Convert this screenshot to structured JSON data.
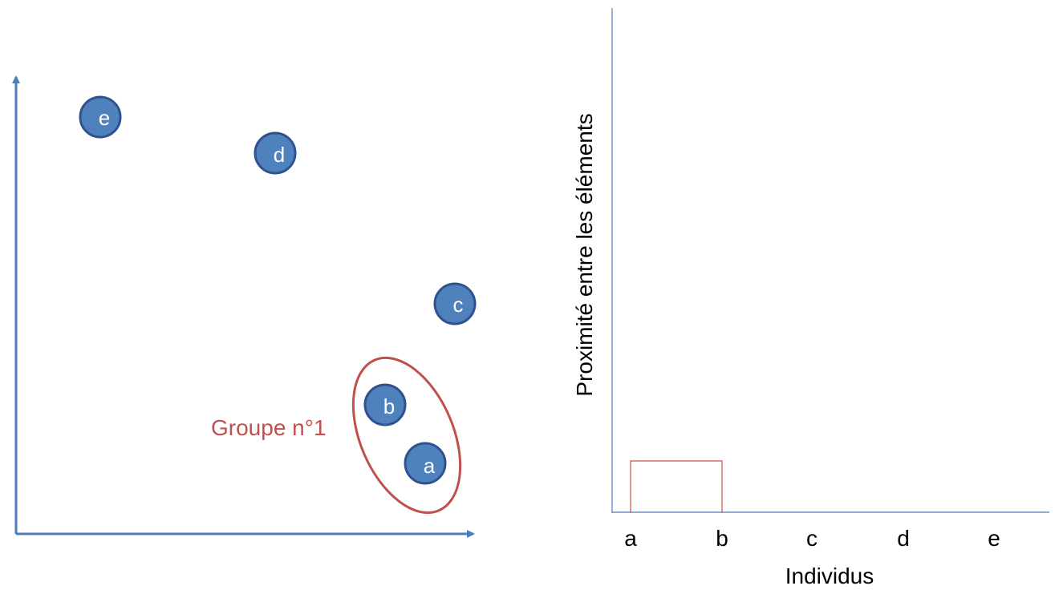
{
  "scatter": {
    "points": [
      {
        "label": "e"
      },
      {
        "label": "d"
      },
      {
        "label": "c"
      },
      {
        "label": "b"
      },
      {
        "label": "a"
      }
    ],
    "group_label": "Groupe n°1"
  },
  "dendrogram": {
    "y_axis_title": "Proximité entre les éléments",
    "x_axis_title": "Individus",
    "individuals": [
      "a",
      "b",
      "c",
      "d",
      "e"
    ]
  },
  "colors": {
    "point_fill": "#4f81bd",
    "point_stroke": "#2f528f",
    "axis_blue": "#4a7ebb",
    "group_red": "#c0504d",
    "merge_red": "#d05050"
  }
}
